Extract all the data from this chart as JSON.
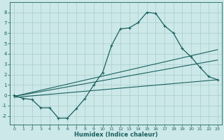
{
  "xlabel": "Humidex (Indice chaleur)",
  "ylabel": "",
  "bg_color": "#cce8e8",
  "grid_color": "#aacccc",
  "line_color": "#1a6060",
  "xlim": [
    -0.5,
    23.5
  ],
  "ylim": [
    -2.8,
    9.0
  ],
  "yticks": [
    -2,
    -1,
    0,
    1,
    2,
    3,
    4,
    5,
    6,
    7,
    8
  ],
  "xticks": [
    0,
    1,
    2,
    3,
    4,
    5,
    6,
    7,
    8,
    9,
    10,
    11,
    12,
    13,
    14,
    15,
    16,
    17,
    18,
    19,
    20,
    21,
    22,
    23
  ],
  "curve_x": [
    0,
    1,
    2,
    3,
    4,
    5,
    6,
    7,
    8,
    9,
    10,
    11,
    12,
    13,
    14,
    15,
    16,
    17,
    18,
    19,
    20,
    21,
    22,
    23
  ],
  "curve_y": [
    0.0,
    -0.3,
    -0.4,
    -1.2,
    -1.2,
    -2.2,
    -2.2,
    -1.3,
    -0.3,
    1.0,
    2.2,
    4.8,
    6.4,
    6.5,
    7.0,
    8.0,
    7.9,
    6.7,
    6.0,
    4.5,
    3.7,
    2.7,
    1.8,
    1.5
  ],
  "line1_x": [
    0,
    23
  ],
  "line1_y": [
    -0.1,
    4.4
  ],
  "line2_x": [
    0,
    23
  ],
  "line2_y": [
    -0.1,
    3.4
  ],
  "line3_x": [
    0,
    23
  ],
  "line3_y": [
    -0.2,
    1.5
  ]
}
